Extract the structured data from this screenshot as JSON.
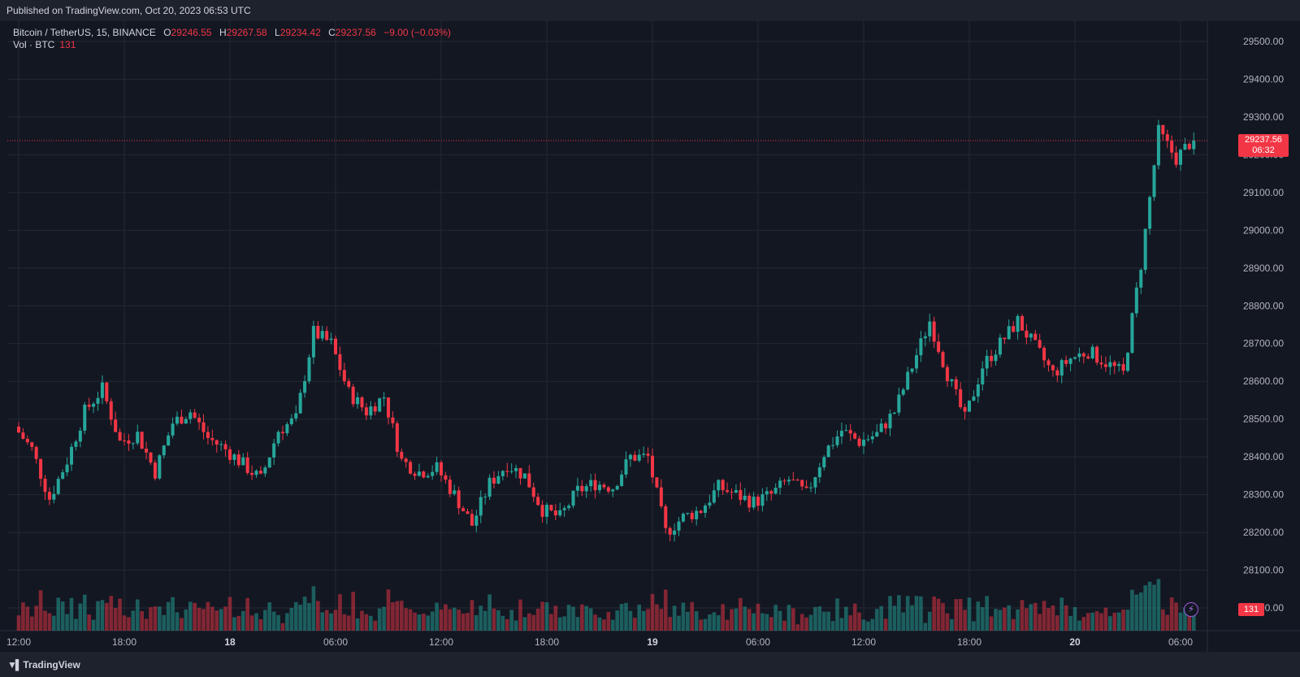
{
  "header": {
    "published": "Published on TradingView.com, Oct 20, 2023 06:53 UTC"
  },
  "legend": {
    "symbol": "Bitcoin / TetherUS, 15, BINANCE",
    "o_label": "O",
    "o_value": "29246.55",
    "h_label": "H",
    "h_value": "29267.58",
    "l_label": "L",
    "l_value": "29234.42",
    "c_label": "C",
    "c_value": "29237.56",
    "change": "−9.00 (−0.03%)",
    "vol_label": "Vol · BTC",
    "vol_value": "131"
  },
  "last_price": {
    "price": "29237.56",
    "countdown": "06:32"
  },
  "volume_tag": "131",
  "footer": {
    "brand": "TradingView",
    "logo_icon": "tradingview-logo-icon"
  },
  "colors": {
    "up": "#26a69a",
    "down": "#f23645",
    "bg": "#131722",
    "grid": "#242833"
  },
  "chart_data": {
    "type": "candlestick",
    "symbol": "Bitcoin / TetherUS",
    "interval": "15",
    "exchange": "BINANCE",
    "y_axis": {
      "ylim": [
        28000,
        29560
      ],
      "ticks": [
        "29500.00",
        "29400.00",
        "29300.00",
        "29200.00",
        "29100.00",
        "29000.00",
        "28900.00",
        "28800.00",
        "28700.00",
        "28600.00",
        "28500.00",
        "28400.00",
        "28300.00",
        "28200.00",
        "28100.00",
        "28000.00"
      ]
    },
    "x_axis": {
      "tick_labels": [
        "12:00",
        "18:00",
        "18",
        "06:00",
        "12:00",
        "18:00",
        "19",
        "06:00",
        "12:00",
        "18:00",
        "20",
        "06:00"
      ],
      "tick_values": [
        "Oct 17 12:00",
        "Oct 17 18:00",
        "Oct 18 00:00",
        "Oct 18 06:00",
        "Oct 18 12:00",
        "Oct 18 18:00",
        "Oct 19 00:00",
        "Oct 19 06:00",
        "Oct 19 12:00",
        "Oct 19 18:00",
        "Oct 20 00:00",
        "Oct 20 06:00"
      ]
    },
    "grid": true,
    "last_price": 29237.56,
    "volume_axis_max": 330,
    "close_path": [
      [
        "Oct 17 12:00",
        28480
      ],
      [
        "Oct 17 13:00",
        28420
      ],
      [
        "Oct 17 14:00",
        28290
      ],
      [
        "Oct 17 15:00",
        28390
      ],
      [
        "Oct 17 16:00",
        28520
      ],
      [
        "Oct 17 17:00",
        28580
      ],
      [
        "Oct 17 18:00",
        28440
      ],
      [
        "Oct 17 19:00",
        28460
      ],
      [
        "Oct 17 20:00",
        28360
      ],
      [
        "Oct 17 21:00",
        28490
      ],
      [
        "Oct 17 22:00",
        28520
      ],
      [
        "Oct 17 23:00",
        28450
      ],
      [
        "Oct 18 00:00",
        28420
      ],
      [
        "Oct 18 01:00",
        28380
      ],
      [
        "Oct 18 02:00",
        28340
      ],
      [
        "Oct 18 03:00",
        28470
      ],
      [
        "Oct 18 04:00",
        28500
      ],
      [
        "Oct 18 05:00",
        28730
      ],
      [
        "Oct 18 06:00",
        28700
      ],
      [
        "Oct 18 07:00",
        28570
      ],
      [
        "Oct 18 08:00",
        28520
      ],
      [
        "Oct 18 09:00",
        28560
      ],
      [
        "Oct 18 10:00",
        28390
      ],
      [
        "Oct 18 11:00",
        28360
      ],
      [
        "Oct 18 12:00",
        28370
      ],
      [
        "Oct 18 13:00",
        28300
      ],
      [
        "Oct 18 14:00",
        28220
      ],
      [
        "Oct 18 15:00",
        28330
      ],
      [
        "Oct 18 16:00",
        28380
      ],
      [
        "Oct 18 17:00",
        28350
      ],
      [
        "Oct 18 18:00",
        28260
      ],
      [
        "Oct 18 19:00",
        28240
      ],
      [
        "Oct 18 20:00",
        28310
      ],
      [
        "Oct 18 21:00",
        28330
      ],
      [
        "Oct 18 22:00",
        28320
      ],
      [
        "Oct 18 23:00",
        28400
      ],
      [
        "Oct 19 00:00",
        28400
      ],
      [
        "Oct 19 01:00",
        28200
      ],
      [
        "Oct 19 02:00",
        28240
      ],
      [
        "Oct 19 03:00",
        28260
      ],
      [
        "Oct 19 04:00",
        28320
      ],
      [
        "Oct 19 05:00",
        28300
      ],
      [
        "Oct 19 06:00",
        28280
      ],
      [
        "Oct 19 07:00",
        28300
      ],
      [
        "Oct 19 08:00",
        28340
      ],
      [
        "Oct 19 09:00",
        28300
      ],
      [
        "Oct 19 10:00",
        28410
      ],
      [
        "Oct 19 11:00",
        28470
      ],
      [
        "Oct 19 12:00",
        28440
      ],
      [
        "Oct 19 13:00",
        28460
      ],
      [
        "Oct 19 14:00",
        28520
      ],
      [
        "Oct 19 15:00",
        28640
      ],
      [
        "Oct 19 16:00",
        28760
      ],
      [
        "Oct 19 17:00",
        28620
      ],
      [
        "Oct 19 18:00",
        28500
      ],
      [
        "Oct 19 19:00",
        28640
      ],
      [
        "Oct 19 20:00",
        28700
      ],
      [
        "Oct 19 21:00",
        28760
      ],
      [
        "Oct 19 22:00",
        28690
      ],
      [
        "Oct 19 23:00",
        28620
      ],
      [
        "Oct 20 00:00",
        28660
      ],
      [
        "Oct 20 01:00",
        28680
      ],
      [
        "Oct 20 02:00",
        28650
      ],
      [
        "Oct 20 03:00",
        28620
      ],
      [
        "Oct 20 04:00",
        28910
      ],
      [
        "Oct 20 05:00",
        29260
      ],
      [
        "Oct 20 06:00",
        29190
      ],
      [
        "Oct 20 06:53",
        29237.56
      ]
    ]
  }
}
